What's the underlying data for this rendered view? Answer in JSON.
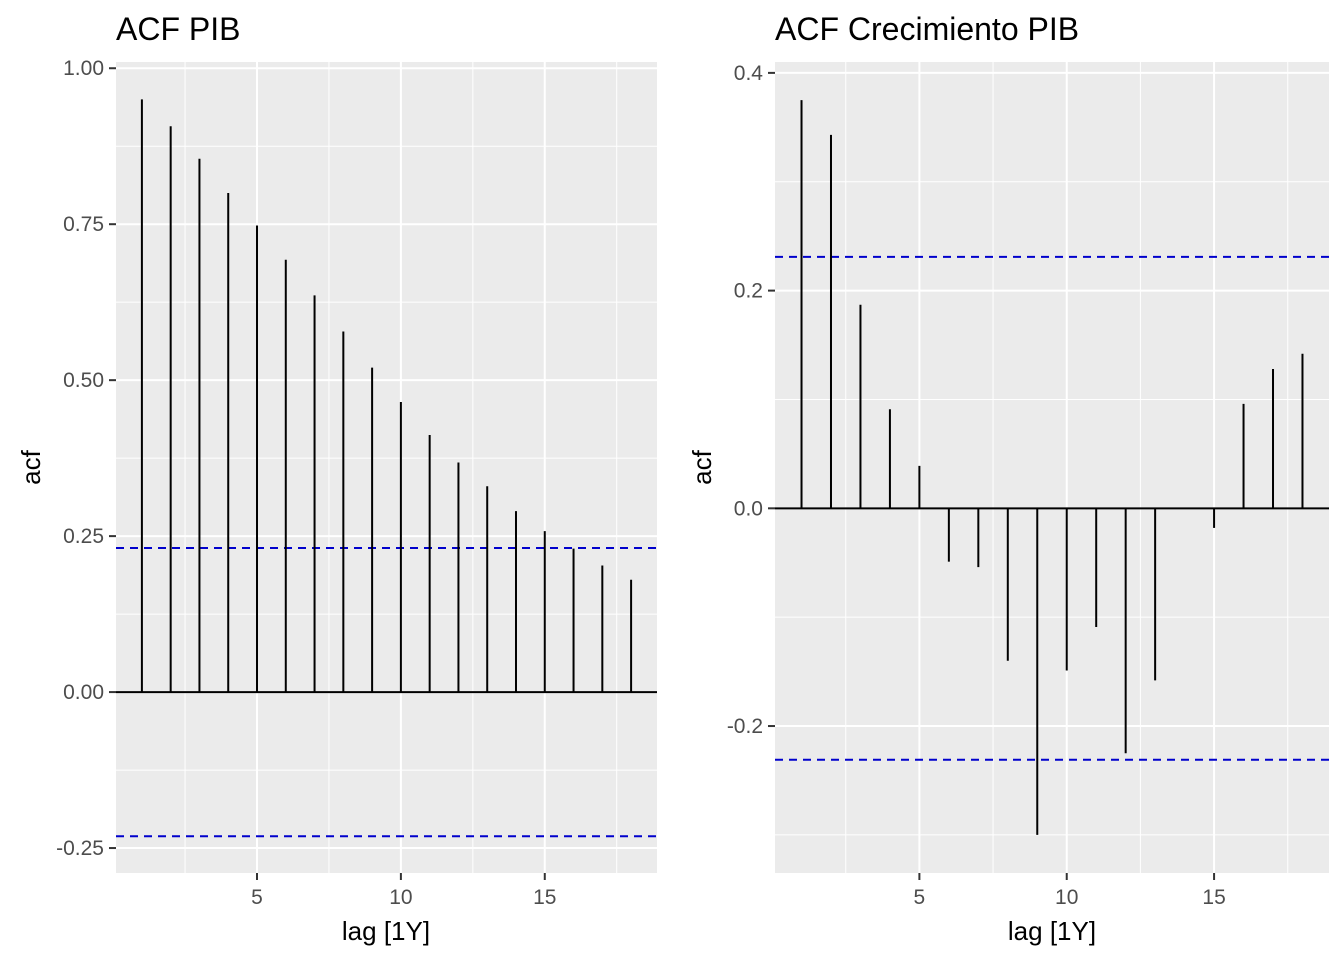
{
  "chart_data": [
    {
      "type": "bar",
      "title": "ACF PIB",
      "xlabel": "lag [1Y]",
      "ylabel": "acf",
      "x": [
        1,
        2,
        3,
        4,
        5,
        6,
        7,
        8,
        9,
        10,
        11,
        12,
        13,
        14,
        15,
        16,
        17,
        18
      ],
      "values": [
        0.95,
        0.907,
        0.855,
        0.8,
        0.748,
        0.693,
        0.636,
        0.578,
        0.52,
        0.465,
        0.412,
        0.368,
        0.33,
        0.29,
        0.258,
        0.23,
        0.203,
        0.18
      ],
      "xlim": [
        0.1,
        18.9
      ],
      "ylim": [
        -0.29,
        1.01
      ],
      "xticks": [
        5,
        10,
        15
      ],
      "xtick_labels": [
        "5",
        "10",
        "15"
      ],
      "yticks": [
        -0.25,
        0,
        0.25,
        0.5,
        0.75,
        1
      ],
      "ytick_labels": [
        "-0.25",
        "0.00",
        "0.25",
        "0.50",
        "0.75",
        "1.00"
      ],
      "confidence_bound": 0.231,
      "grid": true,
      "colors": {
        "bars": "#000000",
        "confidence": "#0000cc",
        "panel": "#ebebeb",
        "grid": "#ffffff"
      }
    },
    {
      "type": "bar",
      "title": "ACF Crecimiento PIB",
      "xlabel": "lag [1Y]",
      "ylabel": "acf",
      "x": [
        1,
        2,
        3,
        4,
        5,
        6,
        7,
        8,
        9,
        10,
        11,
        12,
        13,
        14,
        15,
        16,
        17,
        18
      ],
      "values": [
        0.375,
        0.343,
        0.187,
        0.091,
        0.039,
        -0.049,
        -0.054,
        -0.14,
        -0.3,
        -0.149,
        -0.109,
        -0.225,
        -0.158,
        0.0,
        -0.018,
        0.096,
        0.128,
        0.142
      ],
      "xlim": [
        0.1,
        18.9
      ],
      "ylim": [
        -0.335,
        0.41
      ],
      "xticks": [
        5,
        10,
        15
      ],
      "xtick_labels": [
        "5",
        "10",
        "15"
      ],
      "yticks": [
        -0.2,
        0,
        0.2,
        0.4
      ],
      "ytick_labels": [
        "-0.2",
        "0.0",
        "0.2",
        "0.4"
      ],
      "confidence_bound": 0.231,
      "grid": true,
      "colors": {
        "bars": "#000000",
        "confidence": "#0000cc",
        "panel": "#ebebeb",
        "grid": "#ffffff"
      }
    }
  ]
}
